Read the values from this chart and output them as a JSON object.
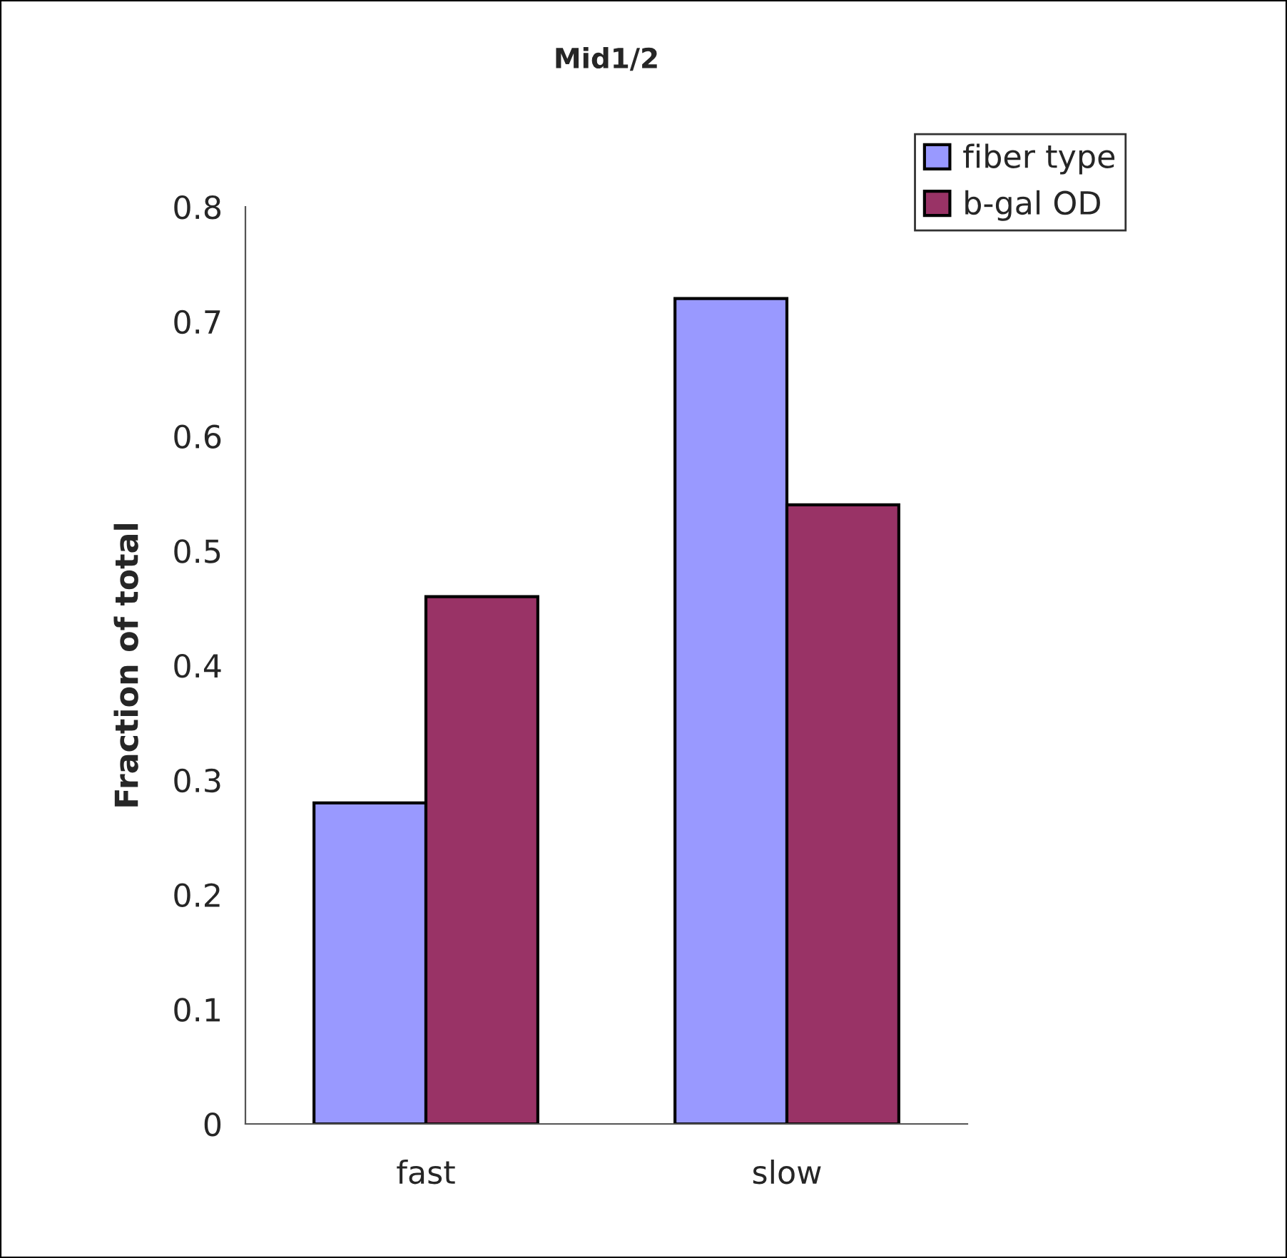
{
  "chart_data": {
    "type": "bar",
    "title": "Mid1/2",
    "ylabel": "Fraction of total",
    "categories": [
      "fast",
      "slow"
    ],
    "series": [
      {
        "name": "fiber type",
        "color": "#9999ff",
        "values": [
          0.28,
          0.72
        ]
      },
      {
        "name": "b-gal OD",
        "color": "#993366",
        "values": [
          0.46,
          0.54
        ]
      }
    ],
    "ylim": [
      0,
      0.8
    ],
    "yticks": [
      0,
      0.1,
      0.2,
      0.3,
      0.4,
      0.5,
      0.6,
      0.7,
      0.8
    ],
    "grid": false,
    "legend": "top right"
  }
}
